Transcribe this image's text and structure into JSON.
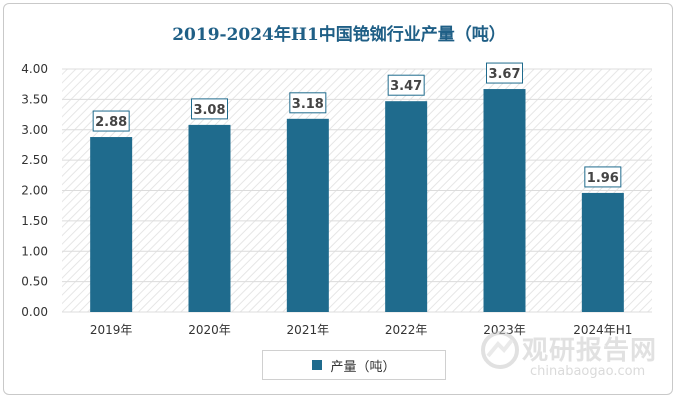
{
  "chart_data": {
    "type": "bar",
    "title": "2019-2024年H1中国铯铷行业产量（吨）",
    "categories": [
      "2019年",
      "2020年",
      "2021年",
      "2022年",
      "2023年",
      "2024年H1"
    ],
    "series": [
      {
        "name": "产量（吨）",
        "values": [
          2.88,
          3.08,
          3.18,
          3.47,
          3.67,
          1.96
        ]
      }
    ],
    "yticks": [
      "0.00",
      "0.50",
      "1.00",
      "1.50",
      "2.00",
      "2.50",
      "3.00",
      "3.50",
      "4.00"
    ],
    "ylim": [
      0,
      4
    ],
    "grid": true,
    "legend_position": "bottom",
    "bar_color": "#1f6b8d",
    "title_color": "#1f5f86"
  },
  "watermark": {
    "text_cn": "观研报告网",
    "text_en": "chinabaogao.com"
  }
}
